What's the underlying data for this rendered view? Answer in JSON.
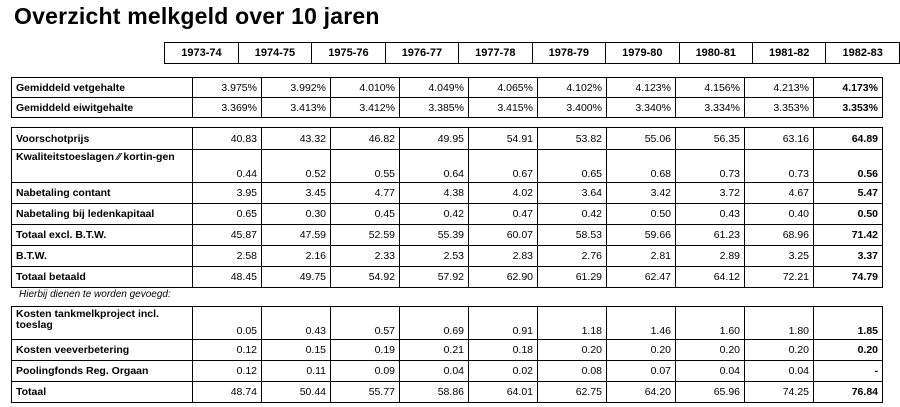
{
  "title": "Overzicht melkgeld over 10 jaren",
  "years": [
    "1973-74",
    "1974-75",
    "1975-76",
    "1976-77",
    "1977-78",
    "1978-79",
    "1979-80",
    "1980-81",
    "1981-82",
    "1982-83"
  ],
  "section1": [
    {
      "label": "Gemiddeld vetgehalte",
      "values": [
        "3.975%",
        "3.992%",
        "4.010%",
        "4.049%",
        "4.065%",
        "4.102%",
        "4.123%",
        "4.156%",
        "4.213%",
        "4.173%"
      ]
    },
    {
      "label": "Gemiddeld eiwitgehalte",
      "values": [
        "3.369%",
        "3.413%",
        "3.412%",
        "3.385%",
        "3.415%",
        "3.400%",
        "3.340%",
        "3.334%",
        "3.353%",
        "3.353%"
      ]
    }
  ],
  "section2": [
    {
      "label": "Voorschotprijs",
      "values": [
        "40.83",
        "43.32",
        "46.82",
        "49.95",
        "54.91",
        "53.82",
        "55.06",
        "56.35",
        "63.16",
        "64.89"
      ]
    },
    {
      "label": "Kwaliteitstoeslagen ⁄⁄ kortin-gen",
      "values": [
        "0.44",
        "0.52",
        "0.55",
        "0.64",
        "0.67",
        "0.65",
        "0.68",
        "0.73",
        "0.73",
        "0.56"
      ]
    },
    {
      "label": "Nabetaling contant",
      "values": [
        "3.95",
        "3.45",
        "4.77",
        "4.38",
        "4.02",
        "3.64",
        "3.42",
        "3.72",
        "4.67",
        "5.47"
      ]
    },
    {
      "label": "Nabetaling bij ledenkapitaal",
      "values": [
        "0.65",
        "0.30",
        "0.45",
        "0.42",
        "0.47",
        "0.42",
        "0.50",
        "0.43",
        "0.40",
        "0.50"
      ]
    },
    {
      "label": "Totaal excl. B.T.W.",
      "values": [
        "45.87",
        "47.59",
        "52.59",
        "55.39",
        "60.07",
        "58.53",
        "59.66",
        "61.23",
        "68.96",
        "71.42"
      ]
    },
    {
      "label": "B.T.W.",
      "values": [
        "2.58",
        "2.16",
        "2.33",
        "2.53",
        "2.83",
        "2.76",
        "2.81",
        "2.89",
        "3.25",
        "3.37"
      ]
    },
    {
      "label": "Totaal betaald",
      "values": [
        "48.45",
        "49.75",
        "54.92",
        "57.92",
        "62.90",
        "61.29",
        "62.47",
        "64.12",
        "72.21",
        "74.79"
      ]
    }
  ],
  "note": "Hierbij dienen te worden gevoegd:",
  "section3": [
    {
      "label": "Kosten tankmelkproject incl. toeslag",
      "values": [
        "0.05",
        "0.43",
        "0.57",
        "0.69",
        "0.91",
        "1.18",
        "1.46",
        "1.60",
        "1.80",
        "1.85"
      ]
    },
    {
      "label": "Kosten veeverbetering",
      "values": [
        "0.12",
        "0.15",
        "0.19",
        "0.21",
        "0.18",
        "0.20",
        "0.20",
        "0.20",
        "0.20",
        "0.20"
      ]
    },
    {
      "label": "Poolingfonds Reg. Orgaan",
      "values": [
        "0.12",
        "0.11",
        "0.09",
        "0.04",
        "0.02",
        "0.08",
        "0.07",
        "0.04",
        "0.04",
        "-"
      ]
    },
    {
      "label": "Totaal",
      "values": [
        "48.74",
        "50.44",
        "55.77",
        "58.86",
        "64.01",
        "62.75",
        "64.20",
        "65.96",
        "74.25",
        "76.84"
      ]
    }
  ]
}
